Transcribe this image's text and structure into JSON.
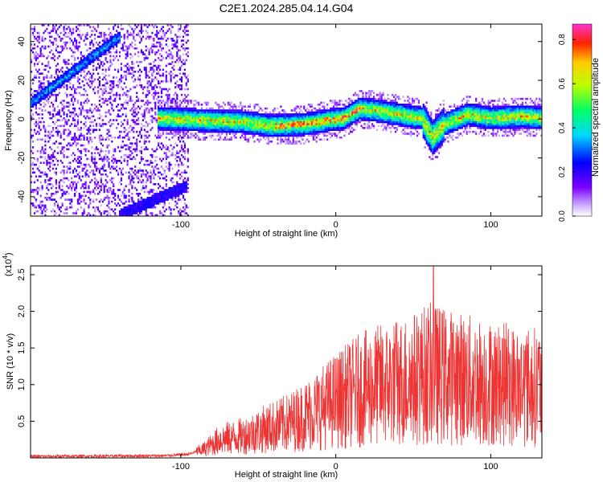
{
  "title": "C2E1.2024.285.04.14.G04",
  "chart_data": [
    {
      "type": "heatmap",
      "xlabel": "Height of straight line (km)",
      "ylabel": "Frequency (Hz)",
      "xlim": [
        -197,
        133
      ],
      "ylim": [
        -50,
        49
      ],
      "xticks": [
        -100,
        0,
        100
      ],
      "yticks": [
        -40,
        -20,
        0,
        20,
        40
      ],
      "colorbar": {
        "label": "Normalized spectral amplitude",
        "range": [
          0,
          0.87
        ],
        "ticks": [
          0.0,
          0.2,
          0.4,
          0.6,
          0.8
        ]
      },
      "features": [
        {
          "x": [
            -197,
            -140
          ],
          "y_center_start": 8,
          "y_center_end": 42,
          "note": "diagonal"
        },
        {
          "x": [
            -140,
            -97
          ],
          "y_center_start": -50,
          "y_center_end": -35,
          "note": "diagonal"
        },
        {
          "x": [
            -115,
            133
          ],
          "band_center": [
            [
              -115,
              0
            ],
            [
              -90,
              -1
            ],
            [
              -60,
              -2
            ],
            [
              -40,
              -4
            ],
            [
              -20,
              -3
            ],
            [
              -5,
              -1
            ],
            [
              5,
              0
            ],
            [
              15,
              5
            ],
            [
              25,
              4
            ],
            [
              40,
              2
            ],
            [
              55,
              0
            ],
            [
              62,
              -10
            ],
            [
              70,
              -3
            ],
            [
              85,
              2
            ],
            [
              100,
              0
            ],
            [
              120,
              1
            ],
            [
              133,
              0
            ]
          ]
        }
      ]
    },
    {
      "type": "line",
      "xlabel": "Height of straight line (km)",
      "ylabel": "SNR (10 * v/v)",
      "scale_label": "(x10",
      "scale_exp": "4",
      "xlim": [
        -197,
        133
      ],
      "ylim": [
        0,
        2.62
      ],
      "xticks": [
        -100,
        0,
        100
      ],
      "yticks": [
        0.5,
        1.0,
        1.5,
        2.0,
        2.5
      ],
      "ytick_labels": [
        "0.5",
        "1.0",
        "1.5",
        "2.0",
        "2.5"
      ],
      "series": [
        {
          "color": "#ee3333",
          "envelope": [
            [
              -197,
              0.02
            ],
            [
              -110,
              0.03
            ],
            [
              -95,
              0.05
            ],
            [
              -85,
              0.12
            ],
            [
              -75,
              0.25
            ],
            [
              -60,
              0.3
            ],
            [
              -45,
              0.4
            ],
            [
              -30,
              0.48
            ],
            [
              -15,
              0.62
            ],
            [
              0,
              0.78
            ],
            [
              15,
              0.92
            ],
            [
              30,
              1.0
            ],
            [
              45,
              1.05
            ],
            [
              60,
              1.15
            ],
            [
              75,
              1.1
            ],
            [
              90,
              1.05
            ],
            [
              105,
              1.0
            ],
            [
              120,
              0.98
            ],
            [
              133,
              0.97
            ]
          ],
          "max": 2.62,
          "max_x": 63
        }
      ]
    }
  ]
}
